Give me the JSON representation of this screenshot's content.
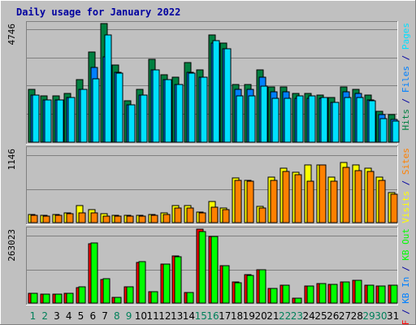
{
  "chart_data": {
    "type": "bar",
    "title": "Daily usage for January 2022",
    "categories": [
      "1",
      "2",
      "3",
      "4",
      "5",
      "6",
      "7",
      "8",
      "9",
      "10",
      "11",
      "12",
      "13",
      "14",
      "15",
      "16",
      "17",
      "18",
      "19",
      "20",
      "21",
      "22",
      "23",
      "24",
      "25",
      "26",
      "27",
      "28",
      "29",
      "30",
      "31"
    ],
    "weekend_days": [
      "1",
      "2",
      "8",
      "9",
      "15",
      "16",
      "22",
      "23",
      "29",
      "30"
    ],
    "panels": [
      {
        "scale_label": "4746",
        "right_labels": [
          {
            "text": "Hits",
            "color": "#008040"
          },
          {
            "text": " / ",
            "color": "#0000a0"
          },
          {
            "text": "Files",
            "color": "#0080ff"
          },
          {
            "text": " / ",
            "color": "#0000a0"
          },
          {
            "text": "Pages",
            "color": "#00e0ff"
          }
        ],
        "ymax": 4746,
        "series": [
          {
            "name": "Hits",
            "color": "#008040",
            "values": [
              2100,
              1850,
              1850,
              1950,
              2500,
              3600,
              4746,
              3100,
              1650,
              2100,
              3300,
              2700,
              2600,
              3200,
              2900,
              4300,
              3950,
              2300,
              2300,
              2900,
              2200,
              2200,
              1950,
              1950,
              1900,
              1800,
              2200,
              2100,
              1900,
              1250,
              1100
            ]
          },
          {
            "name": "Files",
            "color": "#0080ff",
            "values": [
              1900,
              1700,
              1700,
              1800,
              2100,
              3000,
              3400,
              2800,
              1500,
              1900,
              2900,
              2500,
              2300,
              2800,
              2600,
              3950,
              3750,
              2100,
              2100,
              2600,
              2000,
              2000,
              1750,
              1750,
              1750,
              1600,
              2000,
              1950,
              1700,
              1100,
              900
            ]
          },
          {
            "name": "Pages",
            "color": "#00e0ff",
            "values": [
              1900,
              1700,
              1700,
              1800,
              2100,
              2550,
              4300,
              2750,
              1500,
              1900,
              2900,
              2500,
              2300,
              2750,
              2600,
              4050,
              3750,
              1850,
              1850,
              2250,
              1750,
              1750,
              1850,
              1850,
              1800,
              1600,
              1800,
              1800,
              1650,
              950,
              850
            ]
          }
        ]
      },
      {
        "scale_label": "1146",
        "right_labels": [
          {
            "text": "Visits",
            "color": "#ffff00"
          },
          {
            "text": " / ",
            "color": "#0000a0"
          },
          {
            "text": "Sites",
            "color": "#ff8000"
          }
        ],
        "ymax": 1146,
        "series": [
          {
            "name": "Visits",
            "color": "#ffff00",
            "values": [
              130,
              110,
              130,
              150,
              260,
              200,
              140,
              115,
              115,
              115,
              125,
              145,
              270,
              265,
              170,
              330,
              225,
              690,
              650,
              250,
              710,
              850,
              780,
              900,
              900,
              710,
              930,
              900,
              850,
              700,
              465
            ]
          },
          {
            "name": "Sites",
            "color": "#ff8000",
            "values": [
              110,
              95,
              115,
              135,
              155,
              150,
              95,
              95,
              100,
              100,
              115,
              130,
              230,
              230,
              145,
              240,
              200,
              650,
              640,
              225,
              650,
              790,
              740,
              640,
              900,
              640,
              860,
              800,
              790,
              650,
              435
            ]
          }
        ]
      },
      {
        "scale_label": "263023",
        "right_labels": [
          {
            "text": "Visits",
            "color": "#ffff00",
            "hidden": true
          },
          {
            "text": "KB F",
            "color": "#ff0000"
          },
          {
            "text": " / ",
            "color": "#0000a0"
          },
          {
            "text": "KB In",
            "color": "#0080ff"
          },
          {
            "text": " / ",
            "color": "#0000a0"
          },
          {
            "text": "KB Out",
            "color": "#00ff00"
          }
        ],
        "ymax": 263023,
        "series": [
          {
            "name": "KB F",
            "color": "#ff0000",
            "values": [
              35000,
              33000,
              33000,
              36000,
              56000,
              210000,
              85000,
              20000,
              57000,
              144000,
              40000,
              138000,
              168000,
              38000,
              263023,
              236000,
              133000,
              74000,
              100000,
              119000,
              51000,
              63000,
              17000,
              61000,
              68000,
              66000,
              76000,
              80000,
              65000,
              61000,
              64000
            ]
          },
          {
            "name": "KB Out",
            "color": "#00ff00",
            "values": [
              35000,
              33000,
              33000,
              36000,
              57000,
              215000,
              87000,
              21000,
              58000,
              146000,
              40000,
              140000,
              166000,
              38000,
              253000,
              236000,
              134000,
              73000,
              97000,
              119000,
              51000,
              63000,
              16000,
              61000,
              68000,
              66000,
              76000,
              80000,
              65000,
              60000,
              64000
            ]
          }
        ]
      }
    ],
    "grid": true
  }
}
